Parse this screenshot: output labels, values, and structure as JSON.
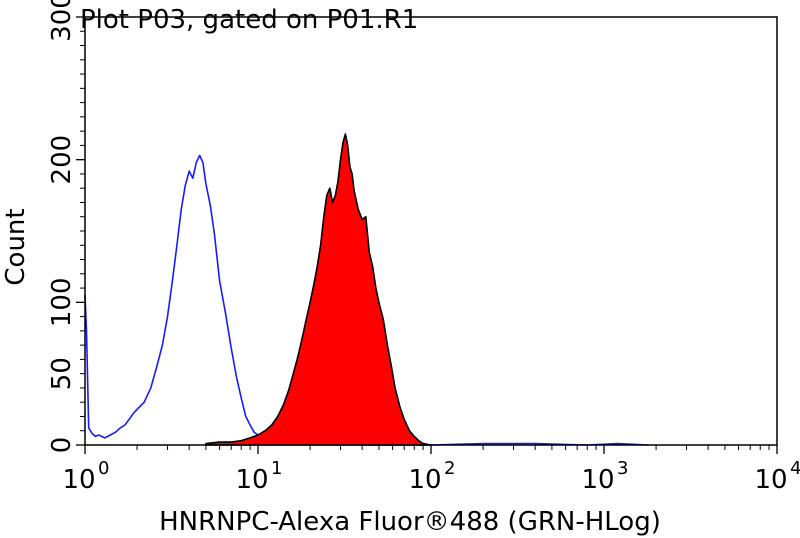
{
  "chart_data": {
    "type": "area",
    "title": "Plot P03, gated on P01.R1",
    "xlabel": "HNRNPC-Alexa Fluor®488 (GRN-HLog)",
    "ylabel": "Count",
    "x_scale": "log",
    "xlim": [
      1,
      10000
    ],
    "ylim": [
      0,
      300
    ],
    "x_ticks": [
      {
        "value": 1,
        "base": "10",
        "exp": "0"
      },
      {
        "value": 10,
        "base": "10",
        "exp": "1"
      },
      {
        "value": 100,
        "base": "10",
        "exp": "2"
      },
      {
        "value": 1000,
        "base": "10",
        "exp": "3"
      },
      {
        "value": 10000,
        "base": "10",
        "exp": "4"
      }
    ],
    "y_ticks": [
      {
        "value": 0,
        "label": "0"
      },
      {
        "value": 50,
        "label": "50"
      },
      {
        "value": 100,
        "label": "100"
      },
      {
        "value": 200,
        "label": "200"
      },
      {
        "value": 300,
        "label": "300"
      }
    ],
    "grid": false,
    "series": [
      {
        "color": "#1a1aff",
        "fill": "none",
        "x": [
          1.0,
          1.02,
          1.05,
          1.1,
          1.15,
          1.2,
          1.3,
          1.4,
          1.5,
          1.6,
          1.7,
          1.8,
          1.9,
          2.0,
          2.2,
          2.4,
          2.6,
          2.8,
          3.0,
          3.2,
          3.4,
          3.6,
          3.8,
          4.0,
          4.2,
          4.4,
          4.6,
          4.8,
          5.0,
          5.3,
          5.6,
          6.0,
          6.5,
          7.0,
          7.5,
          8.0,
          8.5,
          9.0,
          9.5,
          10.0,
          10.5,
          11.0,
          12.0,
          14.0,
          17.0,
          20.0,
          25.0,
          30.0,
          40.0,
          60.0,
          80.0,
          100.0,
          200.0,
          400.0,
          800.0,
          1200.0,
          1800.0
        ],
        "y": [
          105,
          80,
          12,
          8,
          6,
          7,
          5,
          7,
          9,
          12,
          14,
          18,
          22,
          25,
          30,
          40,
          55,
          70,
          90,
          115,
          140,
          165,
          182,
          192,
          187,
          198,
          203,
          198,
          183,
          168,
          148,
          115,
          92,
          68,
          48,
          33,
          20,
          14,
          9,
          7,
          5,
          3,
          2,
          1,
          1,
          2,
          1,
          1,
          0,
          0,
          0,
          0,
          1,
          1,
          0,
          1,
          0
        ]
      },
      {
        "color": "#ff0000",
        "fill": "#ff0000",
        "x": [
          5.0,
          6.0,
          7.0,
          8.0,
          9.0,
          10.0,
          11.0,
          12.0,
          13.0,
          14.0,
          15.0,
          16.0,
          17.0,
          18.0,
          19.0,
          20.0,
          21.0,
          22.0,
          23.0,
          24.0,
          25.0,
          26.0,
          27.0,
          28.0,
          29.0,
          30.0,
          31.0,
          32.0,
          33.0,
          34.0,
          35.0,
          36.0,
          38.0,
          40.0,
          42.0,
          44.0,
          46.0,
          48.0,
          50.0,
          53.0,
          56.0,
          59.0,
          62.0,
          66.0,
          70.0,
          75.0,
          80.0,
          85.0,
          90.0,
          100.0
        ],
        "y": [
          1,
          2,
          2,
          3,
          5,
          7,
          10,
          14,
          20,
          28,
          38,
          50,
          62,
          75,
          88,
          100,
          112,
          125,
          140,
          160,
          175,
          180,
          170,
          175,
          185,
          200,
          212,
          218,
          210,
          195,
          190,
          178,
          165,
          158,
          160,
          135,
          125,
          110,
          100,
          88,
          70,
          55,
          40,
          27,
          18,
          10,
          6,
          3,
          1,
          0
        ]
      }
    ]
  }
}
